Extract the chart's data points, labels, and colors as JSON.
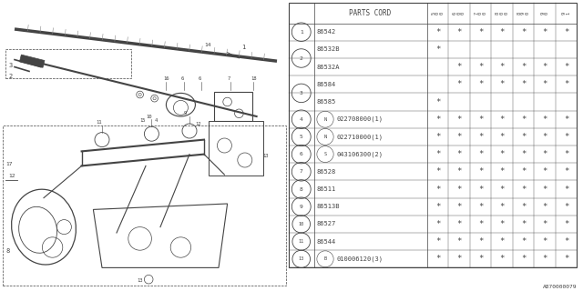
{
  "bg_color": "#ffffff",
  "lc": "#444444",
  "rows": [
    {
      "num": "1",
      "prefix": "",
      "code": "86542",
      "suffix": "",
      "stars": [
        1,
        1,
        1,
        1,
        1,
        1,
        1
      ]
    },
    {
      "num": "2",
      "prefix": "",
      "code": "86532B",
      "suffix": "",
      "stars": [
        1,
        0,
        0,
        0,
        0,
        0,
        0
      ]
    },
    {
      "num": "2",
      "prefix": "",
      "code": "86532A",
      "suffix": "",
      "stars": [
        0,
        1,
        1,
        1,
        1,
        1,
        1
      ]
    },
    {
      "num": "3",
      "prefix": "",
      "code": "86584",
      "suffix": "",
      "stars": [
        0,
        1,
        1,
        1,
        1,
        1,
        1
      ]
    },
    {
      "num": "3",
      "prefix": "",
      "code": "86585",
      "suffix": "",
      "stars": [
        1,
        0,
        0,
        0,
        0,
        0,
        0
      ]
    },
    {
      "num": "4",
      "prefix": "N",
      "code": "022708000",
      "suffix": "(1)",
      "stars": [
        1,
        1,
        1,
        1,
        1,
        1,
        1
      ]
    },
    {
      "num": "5",
      "prefix": "N",
      "code": "022710000",
      "suffix": "(1)",
      "stars": [
        1,
        1,
        1,
        1,
        1,
        1,
        1
      ]
    },
    {
      "num": "6",
      "prefix": "S",
      "code": "043106300",
      "suffix": "(2)",
      "stars": [
        1,
        1,
        1,
        1,
        1,
        1,
        1
      ]
    },
    {
      "num": "7",
      "prefix": "",
      "code": "86528",
      "suffix": "",
      "stars": [
        1,
        1,
        1,
        1,
        1,
        1,
        1
      ]
    },
    {
      "num": "8",
      "prefix": "",
      "code": "86511",
      "suffix": "",
      "stars": [
        1,
        1,
        1,
        1,
        1,
        1,
        1
      ]
    },
    {
      "num": "9",
      "prefix": "",
      "code": "86513B",
      "suffix": "",
      "stars": [
        1,
        1,
        1,
        1,
        1,
        1,
        1
      ]
    },
    {
      "num": "10",
      "prefix": "",
      "code": "86527",
      "suffix": "",
      "stars": [
        1,
        1,
        1,
        1,
        1,
        1,
        1
      ]
    },
    {
      "num": "11",
      "prefix": "",
      "code": "86544",
      "suffix": "",
      "stars": [
        1,
        1,
        1,
        1,
        1,
        1,
        1
      ]
    },
    {
      "num": "13",
      "prefix": "B",
      "code": "010006120",
      "suffix": "(3)",
      "stars": [
        1,
        1,
        1,
        1,
        1,
        1,
        1
      ]
    }
  ],
  "col_labels": [
    "5　6",
    "6　7",
    "7　8",
    "8　9",
    "8　9　0",
    "9　0",
    "9　1"
  ],
  "footer": "A870000079"
}
